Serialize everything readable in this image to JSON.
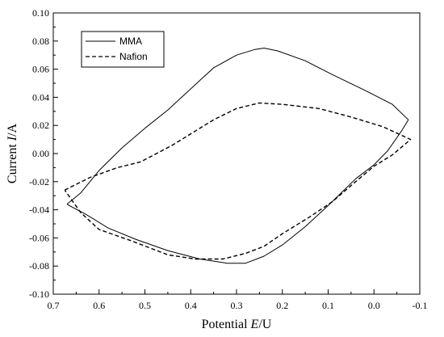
{
  "chart_data": {
    "type": "line",
    "xlabel": {
      "prefix": "Potential ",
      "symbol": "E",
      "suffix": "/U"
    },
    "ylabel": {
      "prefix": "Current ",
      "symbol": "I",
      "suffix": "/A"
    },
    "xlim": [
      0.7,
      -0.1
    ],
    "ylim": [
      -0.1,
      0.1
    ],
    "x_reversed": true,
    "x_ticks": [
      0.7,
      0.6,
      0.5,
      0.4,
      0.3,
      0.2,
      0.1,
      0.0,
      -0.1
    ],
    "x_tick_labels": [
      "0.7",
      "0.6",
      "0.5",
      "0.4",
      "0.3",
      "0.2",
      "0.1",
      "0.0",
      "-0.1"
    ],
    "y_ticks": [
      -0.1,
      -0.08,
      -0.06,
      -0.04,
      -0.02,
      0.0,
      0.02,
      0.04,
      0.06,
      0.08,
      0.1
    ],
    "y_tick_labels": [
      "-0.10",
      "-0.08",
      "-0.06",
      "-0.04",
      "-0.02",
      "0.00",
      "0.02",
      "0.04",
      "0.06",
      "0.08",
      "0.10"
    ],
    "grid": false,
    "legend_position": "top-left",
    "series": [
      {
        "name": "MMA",
        "style": "solid",
        "color": "#000000",
        "x": [
          0.67,
          0.64,
          0.6,
          0.55,
          0.5,
          0.45,
          0.4,
          0.35,
          0.3,
          0.26,
          0.24,
          0.21,
          0.15,
          0.09,
          0.02,
          -0.04,
          -0.075,
          -0.06,
          -0.03,
          0.0,
          0.04,
          0.1,
          0.15,
          0.2,
          0.24,
          0.28,
          0.32,
          0.38,
          0.45,
          0.52,
          0.58,
          0.63,
          0.665,
          0.67
        ],
        "y": [
          -0.036,
          -0.028,
          -0.012,
          0.004,
          0.018,
          0.031,
          0.046,
          0.061,
          0.07,
          0.074,
          0.075,
          0.073,
          0.066,
          0.056,
          0.045,
          0.035,
          0.024,
          0.016,
          0.002,
          -0.008,
          -0.018,
          -0.037,
          -0.052,
          -0.065,
          -0.073,
          -0.078,
          -0.078,
          -0.075,
          -0.069,
          -0.061,
          -0.053,
          -0.043,
          -0.037,
          -0.036
        ]
      },
      {
        "name": "Nafion",
        "style": "dashed",
        "color": "#000000",
        "x": [
          0.675,
          0.62,
          0.56,
          0.51,
          0.48,
          0.44,
          0.39,
          0.35,
          0.3,
          0.25,
          0.2,
          0.12,
          0.05,
          -0.02,
          -0.08,
          -0.04,
          0.0,
          0.04,
          0.09,
          0.14,
          0.2,
          0.24,
          0.28,
          0.33,
          0.39,
          0.45,
          0.53,
          0.6,
          0.64,
          0.675
        ],
        "y": [
          -0.026,
          -0.017,
          -0.01,
          -0.006,
          -0.001,
          0.006,
          0.016,
          0.024,
          0.032,
          0.036,
          0.035,
          0.032,
          0.026,
          0.019,
          0.01,
          -0.001,
          -0.009,
          -0.02,
          -0.034,
          -0.045,
          -0.057,
          -0.066,
          -0.071,
          -0.075,
          -0.075,
          -0.072,
          -0.062,
          -0.054,
          -0.042,
          -0.026
        ]
      }
    ]
  }
}
